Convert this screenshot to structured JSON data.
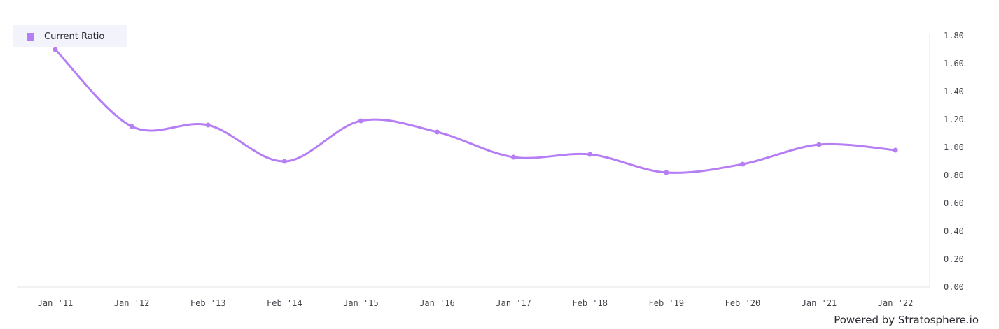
{
  "legend": {
    "label": "Current Ratio"
  },
  "credit": "Powered by Stratosphere.io",
  "colors": {
    "series": "#b57ef5",
    "axis": "#e3e3e8",
    "legend_bg": "#f3f3fb"
  },
  "chart_data": {
    "type": "line",
    "categories": [
      "Jan '11",
      "Jan '12",
      "Feb '13",
      "Feb '14",
      "Jan '15",
      "Jan '16",
      "Jan '17",
      "Feb '18",
      "Feb '19",
      "Feb '20",
      "Jan '21",
      "Jan '22"
    ],
    "series": [
      {
        "name": "Current Ratio",
        "values": [
          1.7,
          1.15,
          1.16,
          0.9,
          1.19,
          1.11,
          0.93,
          0.95,
          0.82,
          0.88,
          1.02,
          0.98
        ]
      }
    ],
    "yticks": [
      "0.00",
      "0.20",
      "0.40",
      "0.60",
      "0.80",
      "1.00",
      "1.20",
      "1.40",
      "1.60",
      "1.80"
    ],
    "ylim": [
      0,
      1.8
    ],
    "y_axis_position": "right",
    "grid": false,
    "legend_position": "top-left",
    "title": "",
    "xlabel": "",
    "ylabel": ""
  }
}
